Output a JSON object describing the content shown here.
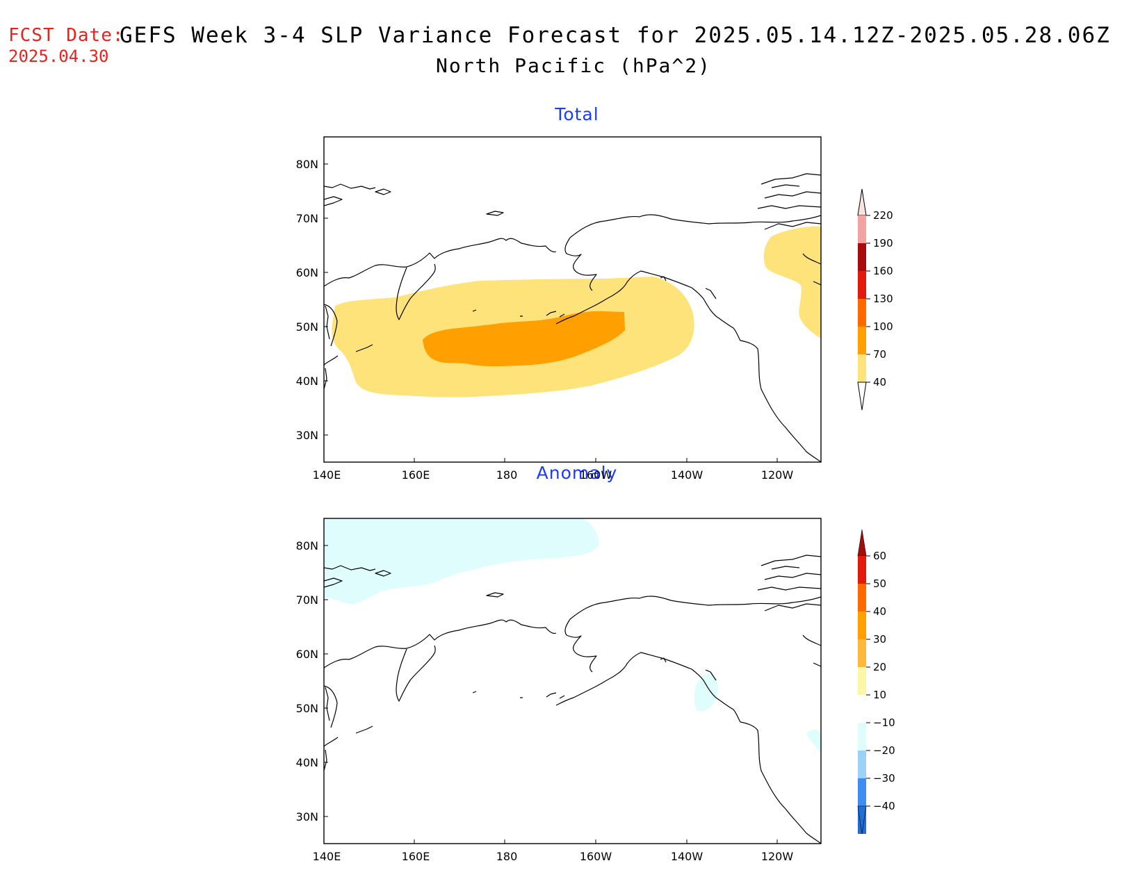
{
  "header": {
    "fcst_label": "FCST Date:",
    "fcst_date": "2025.04.30",
    "title": "GEFS Week 3-4 SLP Variance Forecast for 2025.05.14.12Z-2025.05.28.06Z",
    "subtitle": "North Pacific (hPa^2)"
  },
  "panels": [
    {
      "title": "Total",
      "lat_labels": [
        "80N",
        "70N",
        "60N",
        "50N",
        "40N",
        "30N"
      ],
      "lon_labels": [
        "140E",
        "160E",
        "180",
        "160W",
        "140W",
        "120W"
      ],
      "colorbar": {
        "levels": [
          "220",
          "190",
          "160",
          "130",
          "100",
          "70",
          "40"
        ],
        "colors": [
          "#fbe3e3",
          "#f4a3a3",
          "#a80d0d",
          "#e31a0c",
          "#ff6a00",
          "#ff9f00",
          "#fde37a"
        ]
      }
    },
    {
      "title": "Anomaly",
      "lat_labels": [
        "80N",
        "70N",
        "60N",
        "50N",
        "40N",
        "30N"
      ],
      "lon_labels": [
        "140E",
        "160E",
        "180",
        "160W",
        "140W",
        "120W"
      ],
      "colorbar": {
        "levels": [
          "60",
          "50",
          "40",
          "30",
          "20",
          "10",
          "−10",
          "−20",
          "−30",
          "−40"
        ],
        "colors": [
          "#a50d0d",
          "#e31a0c",
          "#ff6a00",
          "#ff9f00",
          "#fdb93a",
          "#fff7a8",
          "#ffffff",
          "#e0fdfd",
          "#9ed1f6",
          "#3d8ef0",
          "#1f6fd6"
        ]
      }
    }
  ]
}
